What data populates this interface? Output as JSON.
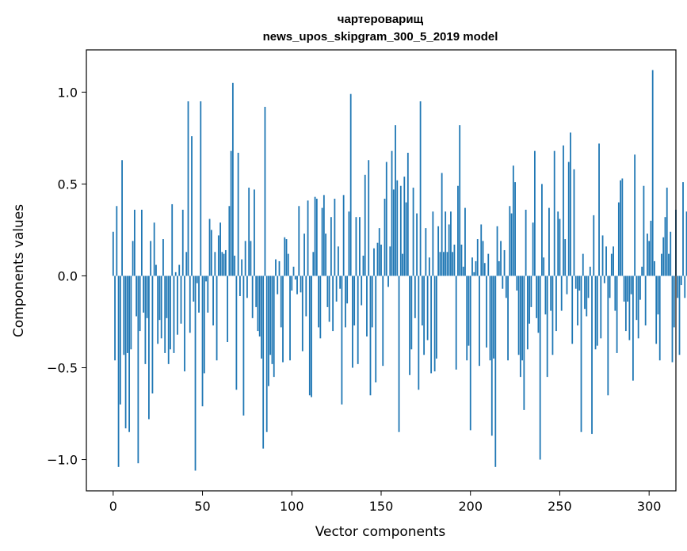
{
  "chart_data": {
    "type": "bar",
    "title": "чартероварищ",
    "subtitle": "news_upos_skipgram_300_5_2019 model",
    "xlabel": "Vector components",
    "ylabel": "Components values",
    "xlim": [
      -15,
      315
    ],
    "ylim": [
      -1.17,
      1.23
    ],
    "xticks": [
      0,
      50,
      100,
      150,
      200,
      250,
      300
    ],
    "xtick_labels": [
      "0",
      "50",
      "100",
      "150",
      "200",
      "250",
      "300"
    ],
    "yticks": [
      -1.0,
      -0.5,
      0.0,
      0.5,
      1.0
    ],
    "ytick_labels": [
      "−1.0",
      "−0.5",
      "0.0",
      "0.5",
      "1.0"
    ],
    "grid": false,
    "bar_color": "#1f77b4",
    "values": [
      0.24,
      -0.46,
      0.38,
      -1.04,
      -0.7,
      0.63,
      -0.43,
      -0.83,
      -0.42,
      -0.85,
      -0.4,
      0.19,
      0.36,
      -0.22,
      -1.02,
      -0.3,
      0.36,
      -0.2,
      -0.48,
      -0.23,
      -0.78,
      0.19,
      -0.64,
      0.29,
      0.06,
      -0.37,
      -0.24,
      -0.34,
      0.2,
      -0.42,
      -0.23,
      -0.48,
      -0.4,
      0.39,
      -0.42,
      0.02,
      -0.32,
      0.06,
      -0.26,
      0.36,
      -0.52,
      0.13,
      0.95,
      -0.31,
      0.76,
      -0.14,
      -1.06,
      -0.04,
      -0.2,
      0.95,
      -0.71,
      -0.53,
      -0.03,
      -0.2,
      0.31,
      0.25,
      -0.27,
      0.13,
      -0.46,
      0.22,
      0.29,
      0.13,
      0.12,
      0.14,
      -0.36,
      0.38,
      0.68,
      1.05,
      0.11,
      -0.62,
      0.67,
      -0.11,
      0.09,
      -0.76,
      0.19,
      -0.12,
      0.48,
      0.19,
      -0.23,
      0.47,
      -0.17,
      -0.3,
      -0.33,
      -0.45,
      -0.94,
      0.92,
      -0.85,
      -0.6,
      -0.43,
      -0.48,
      -0.55,
      0.09,
      -0.1,
      0.08,
      -0.28,
      -0.47,
      0.21,
      0.2,
      0.12,
      -0.46,
      -0.08,
      0.05,
      -0.02,
      -0.1,
      0.38,
      -0.09,
      -0.41,
      0.23,
      -0.22,
      0.41,
      -0.65,
      -0.66,
      0.13,
      0.43,
      0.42,
      -0.28,
      -0.34,
      0.37,
      0.44,
      0.23,
      -0.17,
      -0.25,
      0.32,
      -0.3,
      0.42,
      -0.14,
      0.16,
      -0.07,
      -0.7,
      0.44,
      -0.28,
      -0.15,
      0.35,
      0.99,
      -0.5,
      -0.27,
      0.32,
      -0.48,
      0.32,
      -0.16,
      0.11,
      0.55,
      -0.33,
      0.63,
      -0.65,
      -0.28,
      0.15,
      -0.58,
      0.18,
      0.26,
      0.17,
      -0.49,
      0.42,
      0.62,
      -0.06,
      0.16,
      0.68,
      0.47,
      0.82,
      0.52,
      -0.85,
      0.49,
      0.12,
      0.54,
      0.4,
      0.67,
      -0.54,
      -0.4,
      0.48,
      -0.23,
      0.34,
      -0.62,
      0.95,
      -0.27,
      -0.43,
      0.26,
      -0.35,
      0.1,
      -0.53,
      0.35,
      -0.52,
      -0.45,
      0.27,
      0.13,
      0.56,
      0.13,
      0.35,
      0.13,
      0.28,
      0.35,
      0.13,
      0.17,
      -0.51,
      0.49,
      0.82,
      0.17,
      0.05,
      0.37,
      -0.46,
      -0.38,
      -0.84,
      0.1,
      0.02,
      0.08,
      0.2,
      -0.49,
      0.28,
      0.19,
      0.07,
      -0.39,
      0.12,
      -0.46,
      -0.87,
      -0.45,
      -1.04,
      0.27,
      0.08,
      0.19,
      -0.07,
      0.14,
      -0.12,
      -0.46,
      0.38,
      0.34,
      0.6,
      0.51,
      -0.08,
      -0.43,
      -0.55,
      -0.46,
      -0.73,
      0.36,
      -0.4,
      -0.26,
      -0.17,
      0.29,
      0.68,
      -0.23,
      -0.31,
      -1.0,
      0.5,
      0.1,
      -0.21,
      -0.55,
      0.37,
      -0.19,
      -0.43,
      0.68,
      -0.3,
      0.35,
      0.31,
      -0.19,
      0.71,
      0.2,
      -0.1,
      0.62,
      0.78,
      -0.37,
      0.58,
      -0.07,
      -0.27,
      -0.08,
      -0.85,
      0.12,
      -0.18,
      -0.22,
      -0.12,
      0.05,
      -0.86,
      0.33,
      -0.4,
      -0.38,
      0.72,
      -0.34,
      0.22,
      -0.04,
      0.16,
      -0.65,
      -0.12,
      0.12,
      0.16,
      -0.19,
      -0.42,
      0.4,
      0.52,
      0.53,
      -0.14,
      -0.3,
      -0.14,
      -0.35,
      -0.1,
      -0.57,
      0.66,
      -0.24,
      -0.34,
      -0.13,
      0.05,
      0.49,
      -0.27,
      0.23,
      0.19,
      0.3,
      1.12,
      0.08,
      -0.37,
      -0.21,
      -0.46,
      0.12,
      0.21,
      0.32,
      0.48,
      0.12,
      0.24,
      -0.47,
      -0.28,
      0.36,
      -0.12,
      -0.43,
      -0.05,
      0.51,
      -0.12,
      0.35
    ]
  }
}
